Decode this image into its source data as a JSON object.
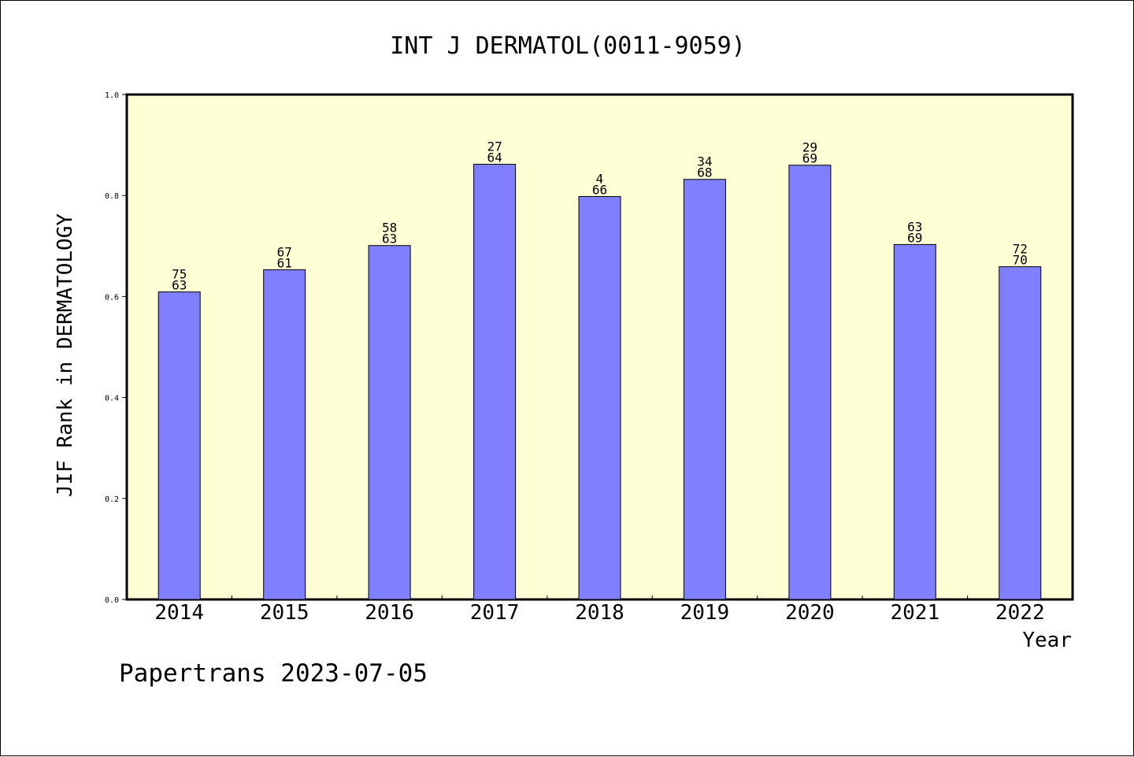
{
  "chart_data": {
    "type": "bar",
    "title": "INT J DERMATOL(0011-9059)",
    "xlabel": "Year",
    "ylabel": "JIF Rank in DERMATOLOGY",
    "footer": "Papertrans 2023-07-05",
    "ylim": [
      0,
      1.0
    ],
    "yticks": [
      "0.0",
      "0.2",
      "0.4",
      "0.6",
      "0.8",
      "1.0"
    ],
    "categories": [
      "2014",
      "2015",
      "2016",
      "2017",
      "2018",
      "2019",
      "2020",
      "2021",
      "2022"
    ],
    "values": [
      0.609,
      0.653,
      0.701,
      0.862,
      0.798,
      0.832,
      0.86,
      0.703,
      0.659
    ],
    "bar_labels": [
      [
        "75",
        "63"
      ],
      [
        "67",
        "61"
      ],
      [
        "58",
        "63"
      ],
      [
        "27",
        "64"
      ],
      [
        "4",
        "66"
      ],
      [
        "34",
        "68"
      ],
      [
        "29",
        "69"
      ],
      [
        "63",
        "69"
      ],
      [
        "72",
        "70"
      ]
    ],
    "grid": false,
    "colors": {
      "plot_background": "#ffffd6",
      "bar_fill": "#8080ff",
      "bar_stroke": "#000000"
    }
  }
}
